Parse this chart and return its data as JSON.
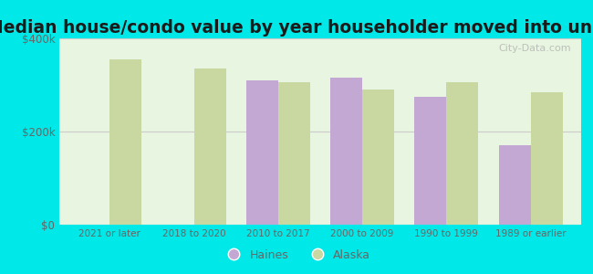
{
  "categories": [
    "2021 or later",
    "2018 to 2020",
    "2010 to 2017",
    "2000 to 2009",
    "1990 to 1999",
    "1989 or earlier"
  ],
  "haines_values": [
    null,
    null,
    310000,
    315000,
    275000,
    170000
  ],
  "alaska_values": [
    355000,
    335000,
    305000,
    290000,
    305000,
    285000
  ],
  "haines_color": "#c4a8d4",
  "alaska_color": "#c8d8a0",
  "title": "Median house/condo value by year householder moved into unit",
  "title_fontsize": 13.5,
  "title_color": "#1a1a1a",
  "background_outer": "#00e8e8",
  "background_inner": "#e8f5e0",
  "ylim": [
    0,
    400000
  ],
  "yticks": [
    0,
    200000,
    400000
  ],
  "ytick_labels": [
    "$0",
    "$200k",
    "$400k"
  ],
  "bar_width": 0.38,
  "legend_haines": "Haines",
  "legend_alaska": "Alaska",
  "tick_color": "#666666",
  "grid_color": "#cccccc",
  "watermark_text": "City-Data.com"
}
